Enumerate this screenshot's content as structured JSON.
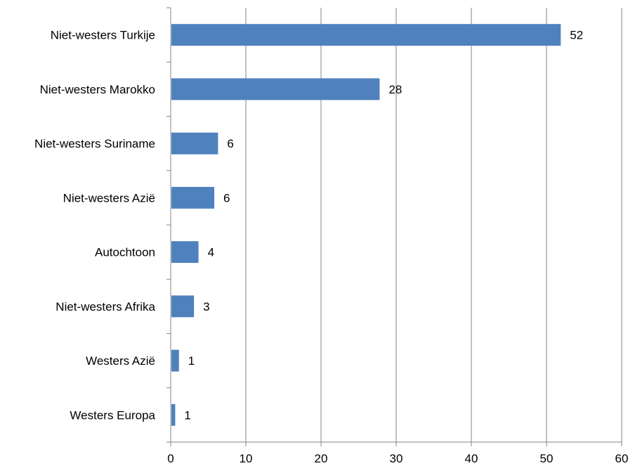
{
  "chart_data": {
    "type": "bar",
    "orientation": "horizontal",
    "title": "",
    "xlabel": "",
    "ylabel": "",
    "categories": [
      "Niet-westers Turkije",
      "Niet-westers Marokko",
      "Niet-westers Suriname",
      "Niet-westers Azië",
      "Autochtoon",
      "Niet-westers Afrika",
      "Westers Azië",
      "Westers Europa"
    ],
    "values": [
      51.9,
      27.8,
      6.3,
      5.8,
      3.7,
      3.1,
      1.1,
      0.6
    ],
    "data_labels": [
      "52",
      "28",
      "6",
      "6",
      "4",
      "3",
      "1",
      "1"
    ],
    "xlim": [
      0,
      60
    ],
    "x_ticks": [
      0,
      10,
      20,
      30,
      40,
      50,
      60
    ],
    "x_tick_labels": [
      "0",
      "10",
      "20",
      "30",
      "40",
      "50",
      "60"
    ],
    "grid": "vertical",
    "legend": "none",
    "bar_color": "#4F81BD",
    "grid_color": "#868686",
    "axis_color": "#868686"
  }
}
